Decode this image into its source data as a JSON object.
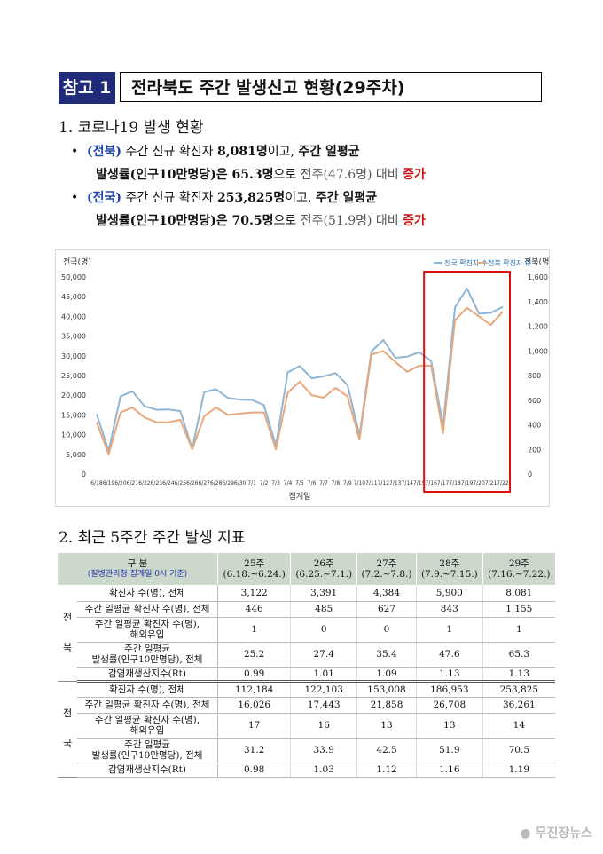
{
  "header": {
    "badge": "참고 1",
    "title": "전라북도 주간 발생신고 현황(29주차)"
  },
  "section1": {
    "title": "1. 코로나19 발생 현황",
    "b1": {
      "tag": "(전북)",
      "t1": " 주간 신규 확진자 ",
      "v1": "8,081명",
      "t2": "이고, ",
      "t3": "주간 일평균",
      "l2a": "발생률(인구10만명당)은 ",
      "v2": "65.3명",
      "t4": "으로 ",
      "prev": "전주(47.6명) 대비 ",
      "trend": "증가"
    },
    "b2": {
      "tag": "(전국)",
      "t1": " 주간 신규 확진자 ",
      "v1": "253,825명",
      "t2": "이고, ",
      "t3": "주간 일평균",
      "l2a": "발생률(인구10만명당)은 ",
      "v2": "70.5명",
      "t4": "으로 ",
      "prev": "전주(51.9명) 대비 ",
      "trend": "증가"
    }
  },
  "chart_data": {
    "type": "line",
    "y_left_label": "전국(명)",
    "y_right_label": "전북(명)",
    "xlabel": "집계일",
    "ylim_left": [
      0,
      50000
    ],
    "ylim_right": [
      0,
      1600
    ],
    "y_left_ticks": [
      "0",
      "5,000",
      "10,000",
      "15,000",
      "20,000",
      "25,000",
      "30,000",
      "35,000",
      "40,000",
      "45,000",
      "50,000"
    ],
    "y_right_ticks": [
      "0",
      "200",
      "400",
      "600",
      "800",
      "1,000",
      "1,200",
      "1,400",
      "1,600"
    ],
    "x_labels": [
      "6/18",
      "6/19",
      "6/20",
      "6/21",
      "6/22",
      "6/23",
      "6/24",
      "6/25",
      "6/26",
      "6/27",
      "6/28",
      "6/29",
      "6/30",
      "7/1",
      "7/2",
      "7/3",
      "7/4",
      "7/5",
      "7/6",
      "7/7",
      "7/8",
      "7/9",
      "7/10",
      "7/11",
      "7/12",
      "7/13",
      "7/14",
      "7/15",
      "7/16",
      "7/17",
      "7/18",
      "7/19",
      "7/20",
      "7/21",
      "7/22"
    ],
    "series": [
      {
        "name": "전국 확진자 수",
        "color": "#8fb5d6",
        "values": [
          15200,
          5900,
          19700,
          21000,
          17200,
          16300,
          16400,
          16000,
          6400,
          20800,
          21500,
          19300,
          18900,
          18800,
          17500,
          7300,
          25800,
          27400,
          24300,
          24800,
          25600,
          22600,
          9800,
          31100,
          34000,
          29500,
          29800,
          30900,
          28700,
          12300,
          42300,
          47100,
          40700,
          40900,
          42400
        ]
      },
      {
        "name": "전북 확진자 수",
        "color": "#e8a87c",
        "values": [
          420,
          160,
          500,
          540,
          460,
          420,
          420,
          440,
          200,
          470,
          540,
          480,
          490,
          500,
          500,
          200,
          660,
          750,
          640,
          620,
          700,
          630,
          280,
          970,
          1000,
          910,
          830,
          880,
          880,
          330,
          1250,
          1350,
          1280,
          1210,
          1320
        ]
      }
    ],
    "highlight": {
      "from": "7/16",
      "to": "7/22"
    },
    "legend_position": "top-right"
  },
  "section2": {
    "title": "2. 최근 5주간 주간 발생 지표"
  },
  "table": {
    "head": {
      "c0a": "구 분",
      "c0b": "(질병관리청 집계일 0시 기준)",
      "weeks": [
        {
          "w": "25주",
          "d": "(6.18.~6.24.)"
        },
        {
          "w": "26주",
          "d": "(6.25.~7.1.)"
        },
        {
          "w": "27주",
          "d": "(7.2.~7.8.)"
        },
        {
          "w": "28주",
          "d": "(7.9.~7.15.)"
        },
        {
          "w": "29주",
          "d": "(7.16.~7.22.)"
        }
      ]
    },
    "jeonbuk": {
      "g1": "전",
      "g2": "북",
      "rows": [
        {
          "label": "확진자 수(명), 전체",
          "v": [
            "3,122",
            "3,391",
            "4,384",
            "5,900",
            "8,081"
          ]
        },
        {
          "label": "주간 일평균 확진자 수(명), 전체",
          "v": [
            "446",
            "485",
            "627",
            "843",
            "1,155"
          ]
        },
        {
          "label": "주간 일평균 확진자 수(명),",
          "label2": "해외유입",
          "v": [
            "1",
            "0",
            "0",
            "1",
            "1"
          ]
        },
        {
          "label": "주간 일평균",
          "label2": "발생률(인구10만명당), 전체",
          "v": [
            "25.2",
            "27.4",
            "35.4",
            "47.6",
            "65.3"
          ]
        },
        {
          "label": "감염재생산지수(Rt)",
          "v": [
            "0.99",
            "1.01",
            "1.09",
            "1.13",
            "1.13"
          ]
        }
      ]
    },
    "national": {
      "g1": "전",
      "g2": "국",
      "rows": [
        {
          "label": "확진자 수(명), 전체",
          "v": [
            "112,184",
            "122,103",
            "153,008",
            "186,953",
            "253,825"
          ]
        },
        {
          "label": "주간 일평균 확진자 수(명), 전체",
          "v": [
            "16,026",
            "17,443",
            "21,858",
            "26,708",
            "36,261"
          ]
        },
        {
          "label": "주간 일평균 확진자 수(명),",
          "label2": "해외유입",
          "v": [
            "17",
            "16",
            "13",
            "13",
            "14"
          ]
        },
        {
          "label": "주간 일평균",
          "label2": "발생률(인구10만명당), 전체",
          "v": [
            "31.2",
            "33.9",
            "42.5",
            "51.9",
            "70.5"
          ]
        },
        {
          "label": "감염재생산지수(Rt)",
          "v": [
            "0.98",
            "1.03",
            "1.12",
            "1.16",
            "1.19"
          ]
        }
      ]
    }
  },
  "watermark": "무진장뉴스"
}
